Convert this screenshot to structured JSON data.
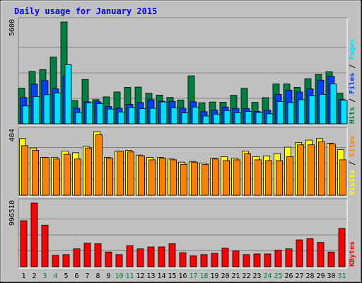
{
  "chart_data": {
    "type": "bar",
    "title": "Daily usage for January 2015",
    "categories": [
      "1",
      "2",
      "3",
      "4",
      "5",
      "6",
      "7",
      "8",
      "9",
      "10",
      "11",
      "12",
      "13",
      "14",
      "15",
      "16",
      "17",
      "18",
      "19",
      "20",
      "21",
      "22",
      "23",
      "24",
      "25",
      "26",
      "27",
      "28",
      "29",
      "30",
      "31"
    ],
    "weekend_days": [
      "3",
      "4",
      "10",
      "11",
      "17",
      "18",
      "24",
      "25",
      "31"
    ],
    "panels": [
      {
        "id": "hits",
        "max_label": "5600",
        "ylim": [
          0,
          5600
        ],
        "right_labels": [
          "Pages",
          "Files",
          "Hits"
        ],
        "series": [
          {
            "name": "Hits",
            "color": "#008040",
            "values": [
              1960,
              2880,
              2980,
              3670,
              5600,
              1280,
              2440,
              1330,
              1480,
              1750,
              2000,
              2020,
              1680,
              1580,
              1450,
              1310,
              2640,
              1160,
              1200,
              1190,
              1570,
              1950,
              1180,
              1440,
              2190,
              2190,
              2000,
              2480,
              2710,
              2860,
              1690
            ]
          },
          {
            "name": "Files",
            "color": "#0040ff",
            "values": [
              1450,
              2180,
              2380,
              1920,
              2610,
              860,
              1210,
              1210,
              950,
              860,
              1070,
              1170,
              1330,
              1250,
              1240,
              860,
              1210,
              670,
              750,
              920,
              850,
              840,
              680,
              750,
              1620,
              1850,
              1750,
              1920,
              2400,
              2610,
              1330
            ]
          },
          {
            "name": "Pages",
            "color": "#00e0ff",
            "values": [
              980,
              1500,
              1600,
              1700,
              3250,
              620,
              1150,
              1110,
              810,
              650,
              900,
              830,
              850,
              1200,
              880,
              600,
              920,
              430,
              530,
              720,
              610,
              680,
              620,
              550,
              1230,
              1170,
              1320,
              1540,
              1620,
              2190,
              1300
            ]
          }
        ]
      },
      {
        "id": "visits",
        "max_label": "404",
        "ylim": [
          0,
          404
        ],
        "right_labels": [
          "Sites",
          "Visits"
        ],
        "series": [
          {
            "name": "Visits",
            "color": "#ffff00",
            "values": [
              360,
              300,
              240,
              240,
              280,
              270,
              310,
              404,
              240,
              280,
              285,
              255,
              240,
              240,
              230,
              210,
              215,
              205,
              235,
              245,
              235,
              280,
              245,
              250,
              265,
              305,
              335,
              350,
              360,
              330,
              290
            ]
          },
          {
            "name": "Sites",
            "color": "#ff8000",
            "values": [
              315,
              285,
              240,
              230,
              260,
              230,
              300,
              385,
              235,
              280,
              275,
              250,
              225,
              235,
              225,
              195,
              210,
              195,
              230,
              220,
              225,
              265,
              225,
              220,
              220,
              245,
              320,
              320,
              340,
              325,
              225
            ]
          }
        ]
      },
      {
        "id": "kbytes",
        "max_label": "996510",
        "ylim": [
          0,
          996510
        ],
        "right_labels": [
          "KBytes"
        ],
        "series": [
          {
            "name": "KBytes",
            "color": "#ff0000",
            "values": [
              720000,
              996510,
              650000,
              180000,
              190000,
              280000,
              370000,
              360000,
              230000,
              190000,
              330000,
              280000,
              310000,
              310000,
              360000,
              220000,
              170000,
              190000,
              210000,
              290000,
              250000,
              190000,
              200000,
              200000,
              260000,
              280000,
              420000,
              440000,
              380000,
              230000,
              600000
            ]
          }
        ]
      }
    ]
  }
}
